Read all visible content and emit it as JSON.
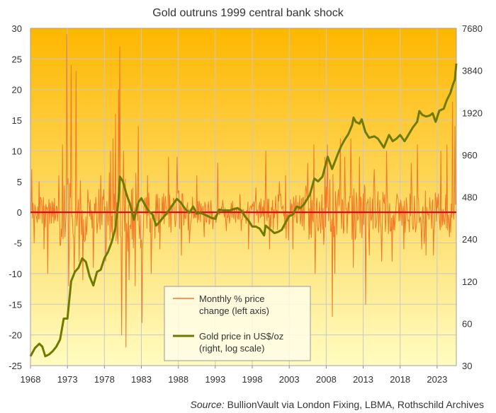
{
  "chart_data": {
    "type": "line",
    "title": "Gold outruns 1999 central bank shock",
    "x_ticks": [
      "1968",
      "1973",
      "1978",
      "1983",
      "1988",
      "1993",
      "1998",
      "2003",
      "2008",
      "2013",
      "2018",
      "2023"
    ],
    "xlim": [
      1968,
      2025.6
    ],
    "y_left_ticks": [
      "30",
      "25",
      "20",
      "15",
      "10",
      "5",
      "0",
      "-5",
      "-10",
      "-15",
      "-20",
      "-25"
    ],
    "ylim_left": [
      -25,
      30
    ],
    "y_right_ticks": [
      "7680",
      "3840",
      "1920",
      "960",
      "480",
      "240",
      "120",
      "60",
      "30"
    ],
    "ylim_right": [
      30,
      7680
    ],
    "right_axis_log_scale": true,
    "grid": true,
    "zero_line": true,
    "legend_position": "bottom-center",
    "series": [
      {
        "name": "Monthly % price change (left axis)",
        "axis": "left",
        "color": "#f07828",
        "spikes": [
          {
            "x": 1968.2,
            "y": 7
          },
          {
            "x": 1968.5,
            "y": -5
          },
          {
            "x": 1969.2,
            "y": 5
          },
          {
            "x": 1969.8,
            "y": -6
          },
          {
            "x": 1970.3,
            "y": -10
          },
          {
            "x": 1971.8,
            "y": 6
          },
          {
            "x": 1972.3,
            "y": 11
          },
          {
            "x": 1972.9,
            "y": 29
          },
          {
            "x": 1973.2,
            "y": -12
          },
          {
            "x": 1973.5,
            "y": 24
          },
          {
            "x": 1973.9,
            "y": -10
          },
          {
            "x": 1974.2,
            "y": 23
          },
          {
            "x": 1974.6,
            "y": -8
          },
          {
            "x": 1975.1,
            "y": -11
          },
          {
            "x": 1976.5,
            "y": -9
          },
          {
            "x": 1977.5,
            "y": 6
          },
          {
            "x": 1978.2,
            "y": -8
          },
          {
            "x": 1978.8,
            "y": 10
          },
          {
            "x": 1979.2,
            "y": 12
          },
          {
            "x": 1979.5,
            "y": 16
          },
          {
            "x": 1979.9,
            "y": 20
          },
          {
            "x": 1980.1,
            "y": 27
          },
          {
            "x": 1980.3,
            "y": -20
          },
          {
            "x": 1980.6,
            "y": 10
          },
          {
            "x": 1980.9,
            "y": -22
          },
          {
            "x": 1981.3,
            "y": -11
          },
          {
            "x": 1982.2,
            "y": -12
          },
          {
            "x": 1982.6,
            "y": 14
          },
          {
            "x": 1983.1,
            "y": -18
          },
          {
            "x": 1983.8,
            "y": 6
          },
          {
            "x": 1984.3,
            "y": -10
          },
          {
            "x": 1985.5,
            "y": -6
          },
          {
            "x": 1986.7,
            "y": 9
          },
          {
            "x": 1987.8,
            "y": 9
          },
          {
            "x": 1988.4,
            "y": -7
          },
          {
            "x": 1989.5,
            "y": -5
          },
          {
            "x": 1990.5,
            "y": 6
          },
          {
            "x": 1991.5,
            "y": -4
          },
          {
            "x": 1993.3,
            "y": 8
          },
          {
            "x": 1994.5,
            "y": -3
          },
          {
            "x": 1996.5,
            "y": -3
          },
          {
            "x": 1997.5,
            "y": -6
          },
          {
            "x": 1998.5,
            "y": 4
          },
          {
            "x": 1999.8,
            "y": 10
          },
          {
            "x": 2000.3,
            "y": -6
          },
          {
            "x": 2001.7,
            "y": 5
          },
          {
            "x": 2002.5,
            "y": 6
          },
          {
            "x": 2003.5,
            "y": -6
          },
          {
            "x": 2005.5,
            "y": 8
          },
          {
            "x": 2006.3,
            "y": 11
          },
          {
            "x": 2006.5,
            "y": -10
          },
          {
            "x": 2007.8,
            "y": 9
          },
          {
            "x": 2008.2,
            "y": 11
          },
          {
            "x": 2008.8,
            "y": -17
          },
          {
            "x": 2009.2,
            "y": -10
          },
          {
            "x": 2009.9,
            "y": 12
          },
          {
            "x": 2010.5,
            "y": 9
          },
          {
            "x": 2011.3,
            "y": 12
          },
          {
            "x": 2011.7,
            "y": -9
          },
          {
            "x": 2012.5,
            "y": 9
          },
          {
            "x": 2013.3,
            "y": -15
          },
          {
            "x": 2013.8,
            "y": -7
          },
          {
            "x": 2014.5,
            "y": 7
          },
          {
            "x": 2015.5,
            "y": -8
          },
          {
            "x": 2016.2,
            "y": 10
          },
          {
            "x": 2016.9,
            "y": -8
          },
          {
            "x": 2018.5,
            "y": -6
          },
          {
            "x": 2019.5,
            "y": 8
          },
          {
            "x": 2020.3,
            "y": 11
          },
          {
            "x": 2020.9,
            "y": -6
          },
          {
            "x": 2021.5,
            "y": -7
          },
          {
            "x": 2022.5,
            "y": -7
          },
          {
            "x": 2023.5,
            "y": 10
          },
          {
            "x": 2024.3,
            "y": 11
          },
          {
            "x": 2024.7,
            "y": -4
          },
          {
            "x": 2025.1,
            "y": 18
          },
          {
            "x": 2025.4,
            "y": 14
          }
        ]
      },
      {
        "name": "Gold price in US$/oz (right, log scale)",
        "axis": "right",
        "color": "#6e7a00",
        "points": [
          [
            1968.0,
            35
          ],
          [
            1968.6,
            40
          ],
          [
            1969.2,
            43
          ],
          [
            1969.6,
            41
          ],
          [
            1970.0,
            35
          ],
          [
            1970.5,
            36
          ],
          [
            1971.0,
            38
          ],
          [
            1971.5,
            41
          ],
          [
            1972.0,
            46
          ],
          [
            1972.5,
            65
          ],
          [
            1973.0,
            65
          ],
          [
            1973.5,
            120
          ],
          [
            1974.0,
            140
          ],
          [
            1974.5,
            150
          ],
          [
            1975.0,
            175
          ],
          [
            1975.5,
            165
          ],
          [
            1976.0,
            130
          ],
          [
            1976.5,
            112
          ],
          [
            1977.0,
            140
          ],
          [
            1977.5,
            145
          ],
          [
            1978.0,
            175
          ],
          [
            1978.5,
            195
          ],
          [
            1979.0,
            230
          ],
          [
            1979.5,
            290
          ],
          [
            1979.9,
            450
          ],
          [
            1980.1,
            670
          ],
          [
            1980.5,
            620
          ],
          [
            1981.0,
            500
          ],
          [
            1981.5,
            420
          ],
          [
            1982.0,
            330
          ],
          [
            1982.6,
            440
          ],
          [
            1983.0,
            470
          ],
          [
            1983.5,
            420
          ],
          [
            1984.0,
            380
          ],
          [
            1984.5,
            360
          ],
          [
            1985.0,
            300
          ],
          [
            1985.5,
            320
          ],
          [
            1986.0,
            345
          ],
          [
            1986.5,
            370
          ],
          [
            1987.0,
            405
          ],
          [
            1987.8,
            465
          ],
          [
            1988.3,
            440
          ],
          [
            1989.0,
            390
          ],
          [
            1989.5,
            370
          ],
          [
            1990.0,
            410
          ],
          [
            1990.5,
            365
          ],
          [
            1991.0,
            370
          ],
          [
            1991.5,
            360
          ],
          [
            1992.0,
            350
          ],
          [
            1992.5,
            340
          ],
          [
            1993.0,
            335
          ],
          [
            1993.5,
            390
          ],
          [
            1994.0,
            385
          ],
          [
            1995.0,
            385
          ],
          [
            1996.0,
            400
          ],
          [
            1996.5,
            385
          ],
          [
            1997.0,
            350
          ],
          [
            1997.5,
            325
          ],
          [
            1998.0,
            295
          ],
          [
            1998.5,
            295
          ],
          [
            1999.0,
            285
          ],
          [
            1999.6,
            255
          ],
          [
            1999.8,
            300
          ],
          [
            2000.3,
            285
          ],
          [
            2001.0,
            265
          ],
          [
            2001.5,
            270
          ],
          [
            2002.0,
            280
          ],
          [
            2002.5,
            315
          ],
          [
            2003.0,
            350
          ],
          [
            2003.5,
            360
          ],
          [
            2004.0,
            410
          ],
          [
            2004.5,
            400
          ],
          [
            2005.0,
            425
          ],
          [
            2005.8,
            500
          ],
          [
            2006.4,
            650
          ],
          [
            2006.9,
            620
          ],
          [
            2007.5,
            670
          ],
          [
            2008.2,
            930
          ],
          [
            2008.8,
            760
          ],
          [
            2009.5,
            950
          ],
          [
            2010.0,
            1100
          ],
          [
            2010.5,
            1230
          ],
          [
            2011.0,
            1350
          ],
          [
            2011.5,
            1560
          ],
          [
            2011.7,
            1770
          ],
          [
            2012.0,
            1650
          ],
          [
            2012.5,
            1600
          ],
          [
            2012.8,
            1720
          ],
          [
            2013.3,
            1400
          ],
          [
            2013.8,
            1270
          ],
          [
            2014.5,
            1300
          ],
          [
            2015.0,
            1250
          ],
          [
            2015.8,
            1080
          ],
          [
            2016.5,
            1330
          ],
          [
            2017.0,
            1200
          ],
          [
            2017.5,
            1250
          ],
          [
            2018.0,
            1330
          ],
          [
            2018.6,
            1200
          ],
          [
            2019.0,
            1300
          ],
          [
            2019.7,
            1500
          ],
          [
            2020.3,
            1650
          ],
          [
            2020.6,
            1970
          ],
          [
            2021.0,
            1850
          ],
          [
            2021.5,
            1800
          ],
          [
            2022.0,
            1830
          ],
          [
            2022.4,
            1900
          ],
          [
            2022.8,
            1650
          ],
          [
            2023.3,
            1980
          ],
          [
            2023.9,
            2050
          ],
          [
            2024.3,
            2350
          ],
          [
            2024.8,
            2650
          ],
          [
            2025.1,
            3000
          ],
          [
            2025.4,
            3300
          ],
          [
            2025.6,
            4300
          ]
        ]
      }
    ],
    "legend": [
      {
        "label_lines": [
          "Monthly % price",
          "change (left axis)"
        ],
        "color": "#f07828"
      },
      {
        "label_lines": [
          "Gold price in US$/oz",
          "(right, log scale)"
        ],
        "color": "#6e7a00"
      }
    ],
    "zero_line_color": "#dd0000",
    "background_gradient": [
      "#fdb700",
      "#fffcc0"
    ],
    "source_label": "Source:",
    "source_text": " BullionVault via London Fixing, LBMA, Rothschild Archives"
  }
}
